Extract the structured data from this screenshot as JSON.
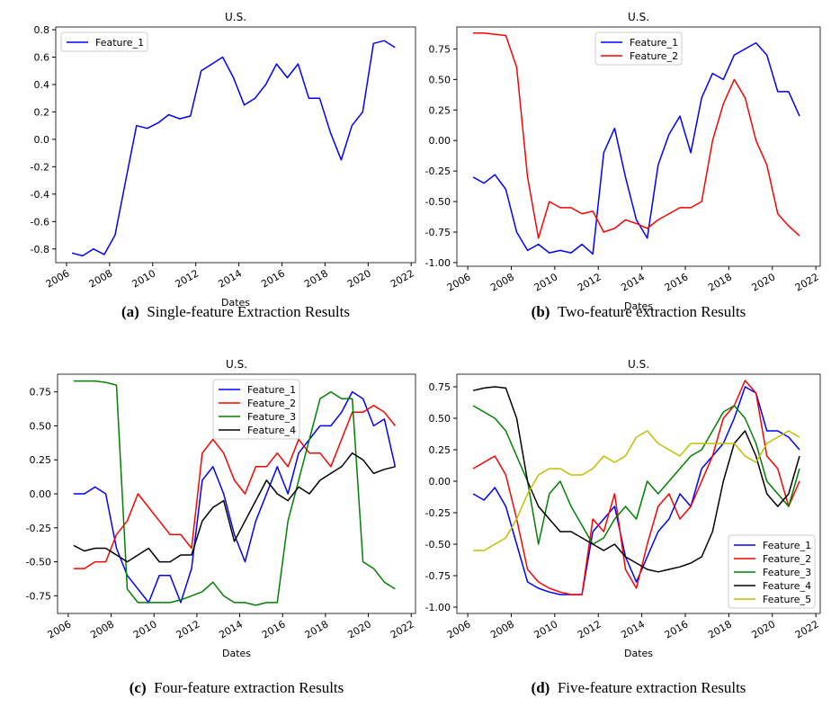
{
  "chart_data": [
    {
      "type": "line",
      "title": "U.S.",
      "xlabel": "Dates",
      "caption_label": "(a)",
      "caption": "Single-feature Extraction Results",
      "legend": "upper left",
      "x": [
        2006.25,
        2006.75,
        2007.25,
        2007.75,
        2008.25,
        2008.75,
        2009.25,
        2009.75,
        2010.25,
        2010.75,
        2011.25,
        2011.75,
        2012.25,
        2012.75,
        2013.25,
        2013.75,
        2014.25,
        2014.75,
        2015.25,
        2015.75,
        2016.25,
        2016.75,
        2017.25,
        2017.75,
        2018.25,
        2018.75,
        2019.25,
        2019.75,
        2020.25,
        2020.75,
        2021.25
      ],
      "xlim": [
        2005.5,
        2022.2
      ],
      "xticks": [
        2006,
        2008,
        2010,
        2012,
        2014,
        2016,
        2018,
        2020,
        2022
      ],
      "ylim": [
        -0.9,
        0.82
      ],
      "yticks": [
        -0.8,
        -0.6,
        -0.4,
        -0.2,
        {
          "value": 0,
          "label": "0.0"
        },
        0.2,
        0.4,
        0.6,
        0.8
      ],
      "series": [
        {
          "name": "Feature_1",
          "color": "#0000ff",
          "values": [
            -0.83,
            -0.85,
            -0.8,
            -0.84,
            -0.7,
            -0.3,
            0.1,
            0.08,
            0.12,
            0.18,
            0.15,
            0.17,
            0.5,
            0.55,
            0.6,
            0.45,
            0.25,
            0.3,
            0.4,
            0.55,
            0.45,
            0.55,
            0.3,
            0.3,
            0.05,
            -0.15,
            0.1,
            0.2,
            0.7,
            0.72,
            0.67
          ]
        }
      ]
    },
    {
      "type": "line",
      "title": "U.S.",
      "xlabel": "Dates",
      "caption_label": "(b)",
      "caption": "Two-feature extraction Results",
      "legend": "upper center",
      "x": [
        2006.25,
        2006.75,
        2007.25,
        2007.75,
        2008.25,
        2008.75,
        2009.25,
        2009.75,
        2010.25,
        2010.75,
        2011.25,
        2011.75,
        2012.25,
        2012.75,
        2013.25,
        2013.75,
        2014.25,
        2014.75,
        2015.25,
        2015.75,
        2016.25,
        2016.75,
        2017.25,
        2017.75,
        2018.25,
        2018.75,
        2019.25,
        2019.75,
        2020.25,
        2020.75,
        2021.25
      ],
      "xlim": [
        2005.5,
        2022.2
      ],
      "xticks": [
        2006,
        2008,
        2010,
        2012,
        2014,
        2016,
        2018,
        2020,
        2022
      ],
      "ylim": [
        -1.03,
        0.93
      ],
      "yticks": [
        {
          "value": -1,
          "label": "-1.00"
        },
        -0.75,
        {
          "value": -0.5,
          "label": "-0.50"
        },
        -0.25,
        {
          "value": 0,
          "label": "0.00"
        },
        0.25,
        {
          "value": 0.5,
          "label": "0.50"
        },
        0.75
      ],
      "series": [
        {
          "name": "Feature_1",
          "color": "#0000ff",
          "values": [
            -0.3,
            -0.35,
            -0.28,
            -0.4,
            -0.75,
            -0.9,
            -0.85,
            -0.92,
            -0.9,
            -0.92,
            -0.85,
            -0.93,
            -0.1,
            0.1,
            -0.3,
            -0.65,
            -0.8,
            -0.2,
            0.05,
            0.2,
            -0.1,
            0.35,
            0.55,
            0.5,
            0.7,
            0.75,
            0.8,
            0.7,
            0.4,
            0.4,
            0.2
          ]
        },
        {
          "name": "Feature_2",
          "color": "#ff0000",
          "values": [
            0.88,
            0.88,
            0.87,
            0.86,
            0.6,
            -0.3,
            -0.8,
            -0.5,
            -0.55,
            -0.55,
            -0.6,
            -0.58,
            -0.75,
            -0.72,
            -0.65,
            -0.68,
            -0.72,
            -0.65,
            -0.6,
            -0.55,
            -0.55,
            -0.5,
            0.0,
            0.3,
            0.5,
            0.35,
            0.0,
            -0.2,
            -0.6,
            -0.7,
            -0.78
          ]
        }
      ]
    },
    {
      "type": "line",
      "title": "U.S.",
      "xlabel": "Dates",
      "caption_label": "(c)",
      "caption": "Four-feature extraction Results",
      "legend": "upper center",
      "x": [
        2006.25,
        2006.75,
        2007.25,
        2007.75,
        2008.25,
        2008.75,
        2009.25,
        2009.75,
        2010.25,
        2010.75,
        2011.25,
        2011.75,
        2012.25,
        2012.75,
        2013.25,
        2013.75,
        2014.25,
        2014.75,
        2015.25,
        2015.75,
        2016.25,
        2016.75,
        2017.25,
        2017.75,
        2018.25,
        2018.75,
        2019.25,
        2019.75,
        2020.25,
        2020.75,
        2021.25
      ],
      "xlim": [
        2005.5,
        2022.2
      ],
      "xticks": [
        2006,
        2008,
        2010,
        2012,
        2014,
        2016,
        2018,
        2020,
        2022
      ],
      "ylim": [
        -0.88,
        0.88
      ],
      "yticks": [
        -0.75,
        {
          "value": -0.5,
          "label": "-0.50"
        },
        -0.25,
        {
          "value": 0,
          "label": "0.00"
        },
        0.25,
        {
          "value": 0.5,
          "label": "0.50"
        },
        0.75
      ],
      "series": [
        {
          "name": "Feature_1",
          "color": "#0000ff",
          "values": [
            0.0,
            0.0,
            0.05,
            0.0,
            -0.4,
            -0.6,
            -0.7,
            -0.8,
            -0.6,
            -0.6,
            -0.8,
            -0.55,
            0.1,
            0.2,
            0.0,
            -0.3,
            -0.5,
            -0.2,
            0.0,
            0.2,
            0.0,
            0.3,
            0.4,
            0.5,
            0.5,
            0.6,
            0.75,
            0.7,
            0.5,
            0.55,
            0.2
          ]
        },
        {
          "name": "Feature_2",
          "color": "#ff0000",
          "values": [
            -0.55,
            -0.55,
            -0.5,
            -0.5,
            -0.3,
            -0.2,
            0.0,
            -0.1,
            -0.2,
            -0.3,
            -0.3,
            -0.4,
            0.3,
            0.4,
            0.3,
            0.1,
            0.0,
            0.2,
            0.2,
            0.3,
            0.2,
            0.4,
            0.3,
            0.3,
            0.2,
            0.4,
            0.6,
            0.6,
            0.65,
            0.6,
            0.5
          ]
        },
        {
          "name": "Feature_3",
          "color": "#008000",
          "values": [
            0.83,
            0.83,
            0.83,
            0.82,
            0.8,
            -0.7,
            -0.8,
            -0.8,
            -0.8,
            -0.8,
            -0.78,
            -0.75,
            -0.72,
            -0.65,
            -0.75,
            -0.8,
            -0.8,
            -0.82,
            -0.8,
            -0.8,
            -0.2,
            0.1,
            0.4,
            0.7,
            0.75,
            0.7,
            0.7,
            -0.5,
            -0.55,
            -0.65,
            -0.7
          ]
        },
        {
          "name": "Feature_4",
          "color": "#000000",
          "values": [
            -0.38,
            -0.42,
            -0.4,
            -0.4,
            -0.45,
            -0.5,
            -0.45,
            -0.4,
            -0.5,
            -0.5,
            -0.45,
            -0.45,
            -0.2,
            -0.1,
            -0.05,
            -0.35,
            -0.2,
            -0.05,
            0.1,
            0.0,
            -0.05,
            0.05,
            0.0,
            0.1,
            0.15,
            0.2,
            0.3,
            0.25,
            0.15,
            0.18,
            0.2
          ]
        }
      ]
    },
    {
      "type": "line",
      "title": "U.S.",
      "xlabel": "Dates",
      "caption_label": "(d)",
      "caption": "Five-feature extraction Results",
      "legend": "lower right",
      "x": [
        2006.25,
        2006.75,
        2007.25,
        2007.75,
        2008.25,
        2008.75,
        2009.25,
        2009.75,
        2010.25,
        2010.75,
        2011.25,
        2011.75,
        2012.25,
        2012.75,
        2013.25,
        2013.75,
        2014.25,
        2014.75,
        2015.25,
        2015.75,
        2016.25,
        2016.75,
        2017.25,
        2017.75,
        2018.25,
        2018.75,
        2019.25,
        2019.75,
        2020.25,
        2020.75,
        2021.25
      ],
      "xlim": [
        2005.5,
        2022.2
      ],
      "xticks": [
        2006,
        2008,
        2010,
        2012,
        2014,
        2016,
        2018,
        2020,
        2022
      ],
      "ylim": [
        -1.05,
        0.85
      ],
      "yticks": [
        {
          "value": -1,
          "label": "-1.00"
        },
        -0.75,
        {
          "value": -0.5,
          "label": "-0.50"
        },
        -0.25,
        {
          "value": 0,
          "label": "0.00"
        },
        0.25,
        {
          "value": 0.5,
          "label": "0.50"
        },
        0.75
      ],
      "series": [
        {
          "name": "Feature_1",
          "color": "#0000ff",
          "values": [
            -0.1,
            -0.15,
            -0.05,
            -0.2,
            -0.5,
            -0.8,
            -0.85,
            -0.88,
            -0.9,
            -0.9,
            -0.9,
            -0.4,
            -0.3,
            -0.2,
            -0.6,
            -0.8,
            -0.6,
            -0.4,
            -0.3,
            -0.1,
            -0.2,
            0.1,
            0.2,
            0.3,
            0.5,
            0.75,
            0.7,
            0.4,
            0.4,
            0.35,
            0.25
          ]
        },
        {
          "name": "Feature_2",
          "color": "#ff0000",
          "values": [
            0.1,
            0.15,
            0.2,
            0.05,
            -0.3,
            -0.7,
            -0.8,
            -0.85,
            -0.88,
            -0.9,
            -0.9,
            -0.3,
            -0.4,
            -0.1,
            -0.7,
            -0.85,
            -0.5,
            -0.2,
            -0.1,
            -0.3,
            -0.2,
            0.0,
            0.2,
            0.5,
            0.6,
            0.8,
            0.7,
            0.2,
            0.1,
            -0.2,
            0.0
          ]
        },
        {
          "name": "Feature_3",
          "color": "#008000",
          "values": [
            0.6,
            0.55,
            0.5,
            0.4,
            0.2,
            0.0,
            -0.5,
            -0.1,
            0.0,
            -0.2,
            -0.35,
            -0.5,
            -0.45,
            -0.3,
            -0.2,
            -0.3,
            0.0,
            -0.1,
            0.0,
            0.1,
            0.2,
            0.25,
            0.4,
            0.55,
            0.6,
            0.5,
            0.3,
            0.0,
            -0.1,
            -0.2,
            0.1
          ]
        },
        {
          "name": "Feature_4",
          "color": "#000000",
          "values": [
            0.72,
            0.74,
            0.75,
            0.74,
            0.5,
            0.0,
            -0.2,
            -0.3,
            -0.4,
            -0.4,
            -0.45,
            -0.5,
            -0.55,
            -0.5,
            -0.6,
            -0.65,
            -0.7,
            -0.72,
            -0.7,
            -0.68,
            -0.65,
            -0.6,
            -0.4,
            0.0,
            0.3,
            0.4,
            0.2,
            -0.1,
            -0.2,
            -0.1,
            0.2
          ]
        },
        {
          "name": "Feature_5",
          "color": "#bfbf00",
          "values": [
            -0.55,
            -0.55,
            -0.5,
            -0.45,
            -0.3,
            -0.1,
            0.05,
            0.1,
            0.1,
            0.05,
            0.05,
            0.1,
            0.2,
            0.15,
            0.2,
            0.35,
            0.4,
            0.3,
            0.25,
            0.2,
            0.3,
            0.3,
            0.3,
            0.3,
            0.3,
            0.2,
            0.15,
            0.3,
            0.35,
            0.4,
            0.35
          ]
        }
      ]
    }
  ]
}
